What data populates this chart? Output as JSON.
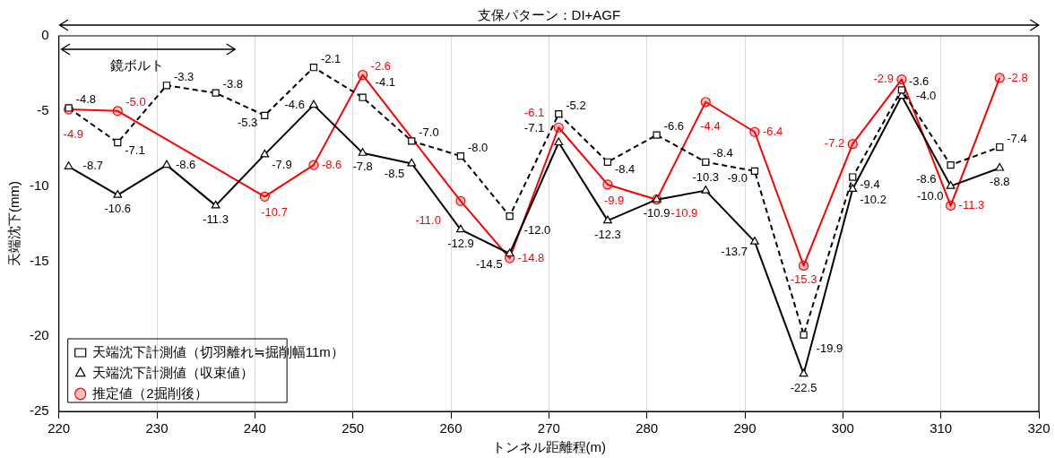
{
  "chart_data": {
    "type": "line",
    "xlabel": "トンネル距離程(m)",
    "ylabel": "天端沈下(mm)",
    "x": [
      221,
      226,
      231,
      236,
      241,
      246,
      251,
      256,
      261,
      266,
      271,
      276,
      281,
      286,
      291,
      296,
      301,
      306,
      311,
      316
    ],
    "series": [
      {
        "name": "天端沈下計測値（切羽離れ≒掘削幅11m）",
        "color": "#000000",
        "marker": "square",
        "line_style": "dashed",
        "values": [
          -4.8,
          -7.1,
          -3.3,
          -3.8,
          -5.3,
          -2.1,
          -4.1,
          -7.0,
          -8.0,
          -12.0,
          -5.2,
          -8.4,
          -6.6,
          -8.4,
          -9.0,
          -19.9,
          -9.4,
          -3.6,
          -8.6,
          -7.4
        ],
        "value_labels": [
          "-4.8",
          "-7.1",
          "-3.3",
          "-3.8",
          "-5.3",
          "-2.1",
          "-4.1",
          "-7.0",
          "-8.0",
          "-12.0",
          "-5.2",
          "-8.4",
          "-6.6",
          "-8.4",
          "-9.0",
          "-19.9",
          "-9.4",
          "-3.6",
          "-8.6",
          "-7.4"
        ]
      },
      {
        "name": "天端沈下計測値（収束値）",
        "color": "#000000",
        "marker": "triangle",
        "line_style": "solid",
        "values": [
          -8.7,
          -10.6,
          -8.6,
          -11.3,
          -7.9,
          -4.6,
          -7.8,
          -8.5,
          -12.9,
          -14.5,
          -7.1,
          -12.3,
          -10.9,
          -10.3,
          -13.7,
          -22.5,
          -10.2,
          -4.0,
          -10.0,
          -8.8
        ],
        "value_labels": [
          "-8.7",
          "-10.6",
          "-8.6",
          "-11.3",
          "-7.9",
          "-4.6",
          "-7.8",
          "-8.5",
          "-12.9",
          "-14.5",
          "-7.1",
          "-12.3",
          "-10.9",
          "-10.3",
          "-13.7",
          "-22.5",
          "-10.2",
          "-4.0",
          "-10.0",
          "-8.8"
        ]
      },
      {
        "name": "推定値（2掘削後）",
        "color": "#ff0000",
        "marker": "circle",
        "line_style": "solid",
        "values": [
          -4.9,
          -5.0,
          null,
          null,
          -10.7,
          -8.6,
          -2.6,
          null,
          -11.0,
          -14.8,
          -6.1,
          -9.9,
          -10.9,
          -4.4,
          -6.4,
          -15.3,
          -7.2,
          -2.9,
          -11.3,
          -2.8
        ],
        "value_labels": [
          "-4.9",
          "-5.0",
          null,
          null,
          "-10.7",
          "-8.6",
          "-2.6",
          null,
          "-11.0",
          "-14.8",
          "-6.1",
          "-9.9",
          "-10.9",
          "-4.4",
          "-6.4",
          "-15.3",
          "-7.2",
          "-2.9",
          "-11.3",
          "-2.8"
        ]
      }
    ],
    "xlim": [
      220,
      320
    ],
    "xticks": [
      220,
      230,
      240,
      250,
      260,
      270,
      280,
      290,
      300,
      310,
      320
    ],
    "ylim": [
      -25,
      0
    ],
    "yticks": [
      -25,
      -20,
      -15,
      -10,
      -5,
      0
    ],
    "grid": "x",
    "legend": "bottom left",
    "annotations": [
      "支保パターン：DI+AGF",
      "鏡ボルト"
    ]
  }
}
